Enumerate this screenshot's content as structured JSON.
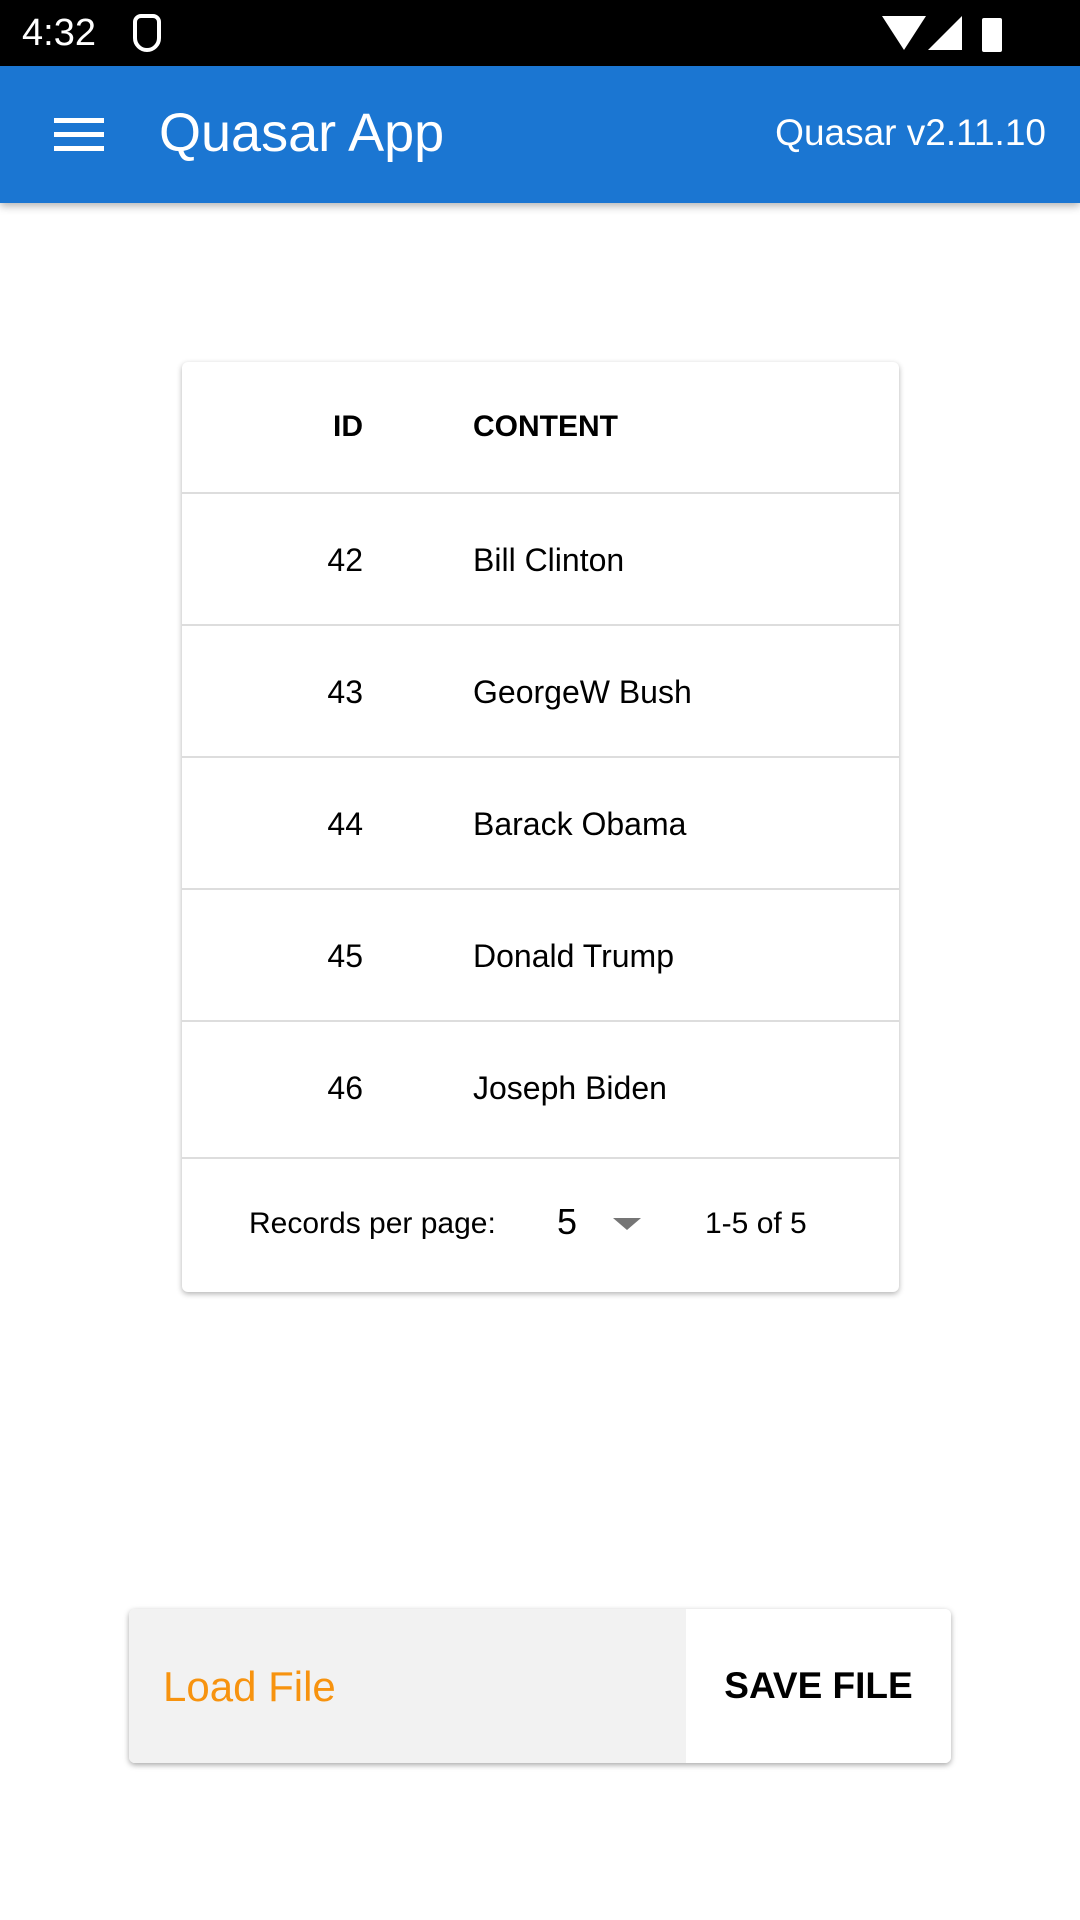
{
  "status_bar": {
    "time": "4:32"
  },
  "app_bar": {
    "title": "Quasar App",
    "version": "Quasar v2.11.10"
  },
  "table": {
    "columns": [
      "ID",
      "CONTENT"
    ],
    "rows": [
      {
        "id": "42",
        "content": "Bill Clinton"
      },
      {
        "id": "43",
        "content": "GeorgeW Bush"
      },
      {
        "id": "44",
        "content": "Barack Obama"
      },
      {
        "id": "45",
        "content": "Donald Trump"
      },
      {
        "id": "46",
        "content": "Joseph Biden"
      }
    ],
    "footer": {
      "records_label": "Records per page:",
      "per_page": "5",
      "range": "1-5 of 5"
    }
  },
  "actions": {
    "load": "Load File",
    "save": "SAVE FILE"
  },
  "colors": {
    "primary": "#1b76d2",
    "load_text": "#f7930f"
  }
}
